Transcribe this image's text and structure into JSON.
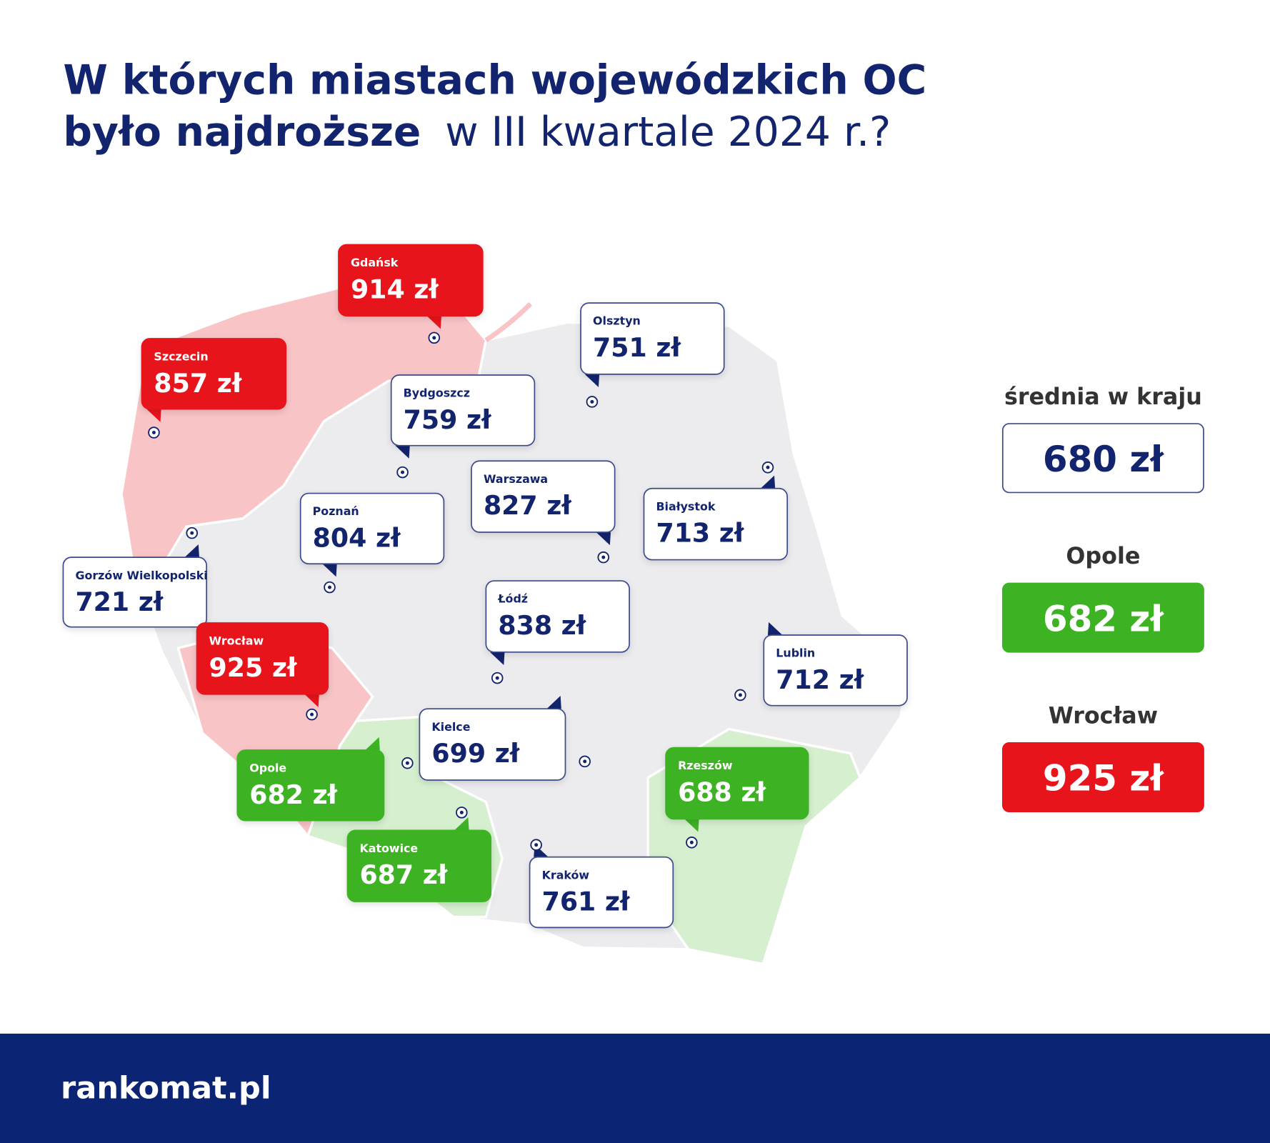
{
  "header": {
    "title_line1": "W których miastach wojewódzkich OC",
    "title_bold": "było najdroższe",
    "title_rest": "w III kwartale 2024 r.?"
  },
  "cities": [
    {
      "name": "Gdańsk",
      "price": "914 zł",
      "color": "#e8141c",
      "text_color": "#ffffff"
    },
    {
      "name": "Szczecin",
      "price": "857 zł",
      "color": "#e8141c",
      "text_color": "#ffffff"
    },
    {
      "name": "Olsztyn",
      "price": "751 zł",
      "color": "#ffffff",
      "text_color": "#13246e"
    },
    {
      "name": "Bydgoszcz",
      "price": "759 zł",
      "color": "#ffffff",
      "text_color": "#13246e"
    },
    {
      "name": "Warszawa",
      "price": "827 zł",
      "color": "#ffffff",
      "text_color": "#13246e"
    },
    {
      "name": "Białystok",
      "price": "713 zł",
      "color": "#ffffff",
      "text_color": "#13246e"
    },
    {
      "name": "Poznań",
      "price": "804 zł",
      "color": "#ffffff",
      "text_color": "#13246e"
    },
    {
      "name": "Gorzów Wielkopolski",
      "price": "721 zł",
      "color": "#ffffff",
      "text_color": "#13246e"
    },
    {
      "name": "Łódź",
      "price": "838 zł",
      "color": "#ffffff",
      "text_color": "#13246e"
    },
    {
      "name": "Wrocław",
      "price": "925 zł",
      "color": "#e8141c",
      "text_color": "#ffffff"
    },
    {
      "name": "Lublin",
      "price": "712 zł",
      "color": "#ffffff",
      "text_color": "#13246e"
    },
    {
      "name": "Kielce",
      "price": "699 zł",
      "color": "#ffffff",
      "text_color": "#13246e"
    },
    {
      "name": "Opole",
      "price": "682 zł",
      "color": "#3db324",
      "text_color": "#ffffff"
    },
    {
      "name": "Rzeszów",
      "price": "688 zł",
      "color": "#3db324",
      "text_color": "#ffffff"
    },
    {
      "name": "Katowice",
      "price": "687 zł",
      "color": "#3db324",
      "text_color": "#ffffff"
    },
    {
      "name": "Kraków",
      "price": "761 zł",
      "color": "#ffffff",
      "text_color": "#13246e"
    }
  ],
  "legend": [
    {
      "label": "średnia w kraju",
      "price": "680 zł",
      "color": "#ffffff",
      "text_color": "#13246e"
    },
    {
      "label": "Opole",
      "price": "682 zł",
      "color": "#3db324",
      "text_color": "#ffffff"
    },
    {
      "label": "Wrocław",
      "price": "925 zł",
      "color": "#e8141c",
      "text_color": "#ffffff"
    }
  ],
  "footer": {
    "logo": "rankomat.pl"
  }
}
